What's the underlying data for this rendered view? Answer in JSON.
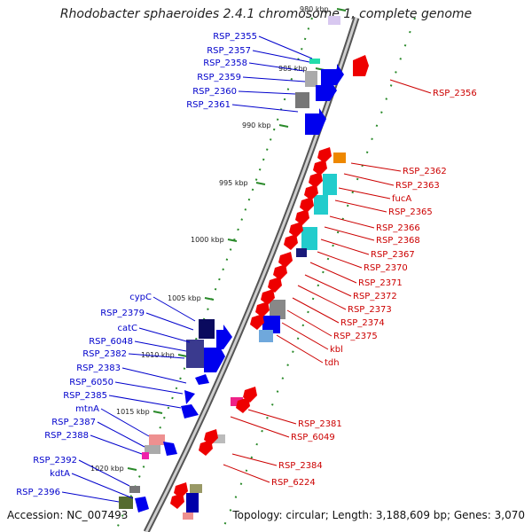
{
  "title": "Rhodobacter sphaeroides 2.4.1 chromosome 1, complete genome",
  "accession": "Accession: NC_007493",
  "summary": "Topology: circular; Length: 3,188,609 bp; Genes: 3,070",
  "ticks": [
    "980 kbp",
    "985 kbp",
    "990 kbp",
    "995 kbp",
    "1000 kbp",
    "1005 kbp",
    "1010 kbp",
    "1015 kbp",
    "1020 kbp"
  ],
  "left_labels": [
    "RSP_2355",
    "RSP_2357",
    "RSP_2358",
    "RSP_2359",
    "RSP_2360",
    "RSP_2361",
    "cypC",
    "RSP_2379",
    "catC",
    "RSP_6048",
    "RSP_2382",
    "RSP_2383",
    "RSP_6050",
    "RSP_2385",
    "mtnA",
    "RSP_2387",
    "RSP_2388",
    "RSP_2392",
    "kdtA",
    "RSP_2396"
  ],
  "right_labels": [
    "RSP_2356",
    "RSP_2362",
    "RSP_2363",
    "fucA",
    "RSP_2365",
    "RSP_2366",
    "RSP_2368",
    "RSP_2367",
    "RSP_2370",
    "RSP_2371",
    "RSP_2372",
    "RSP_2373",
    "RSP_2374",
    "RSP_2375",
    "kbl",
    "tdh",
    "RSP_2381",
    "RSP_6049",
    "RSP_2384",
    "RSP_6224"
  ],
  "colors": {
    "forward_label": "#0000cc",
    "reverse_label": "#cc0000",
    "forward_gene": "#0000ee",
    "reverse_gene": "#ee0000",
    "backbone": "#888888",
    "tick": "#2a8a2a"
  }
}
